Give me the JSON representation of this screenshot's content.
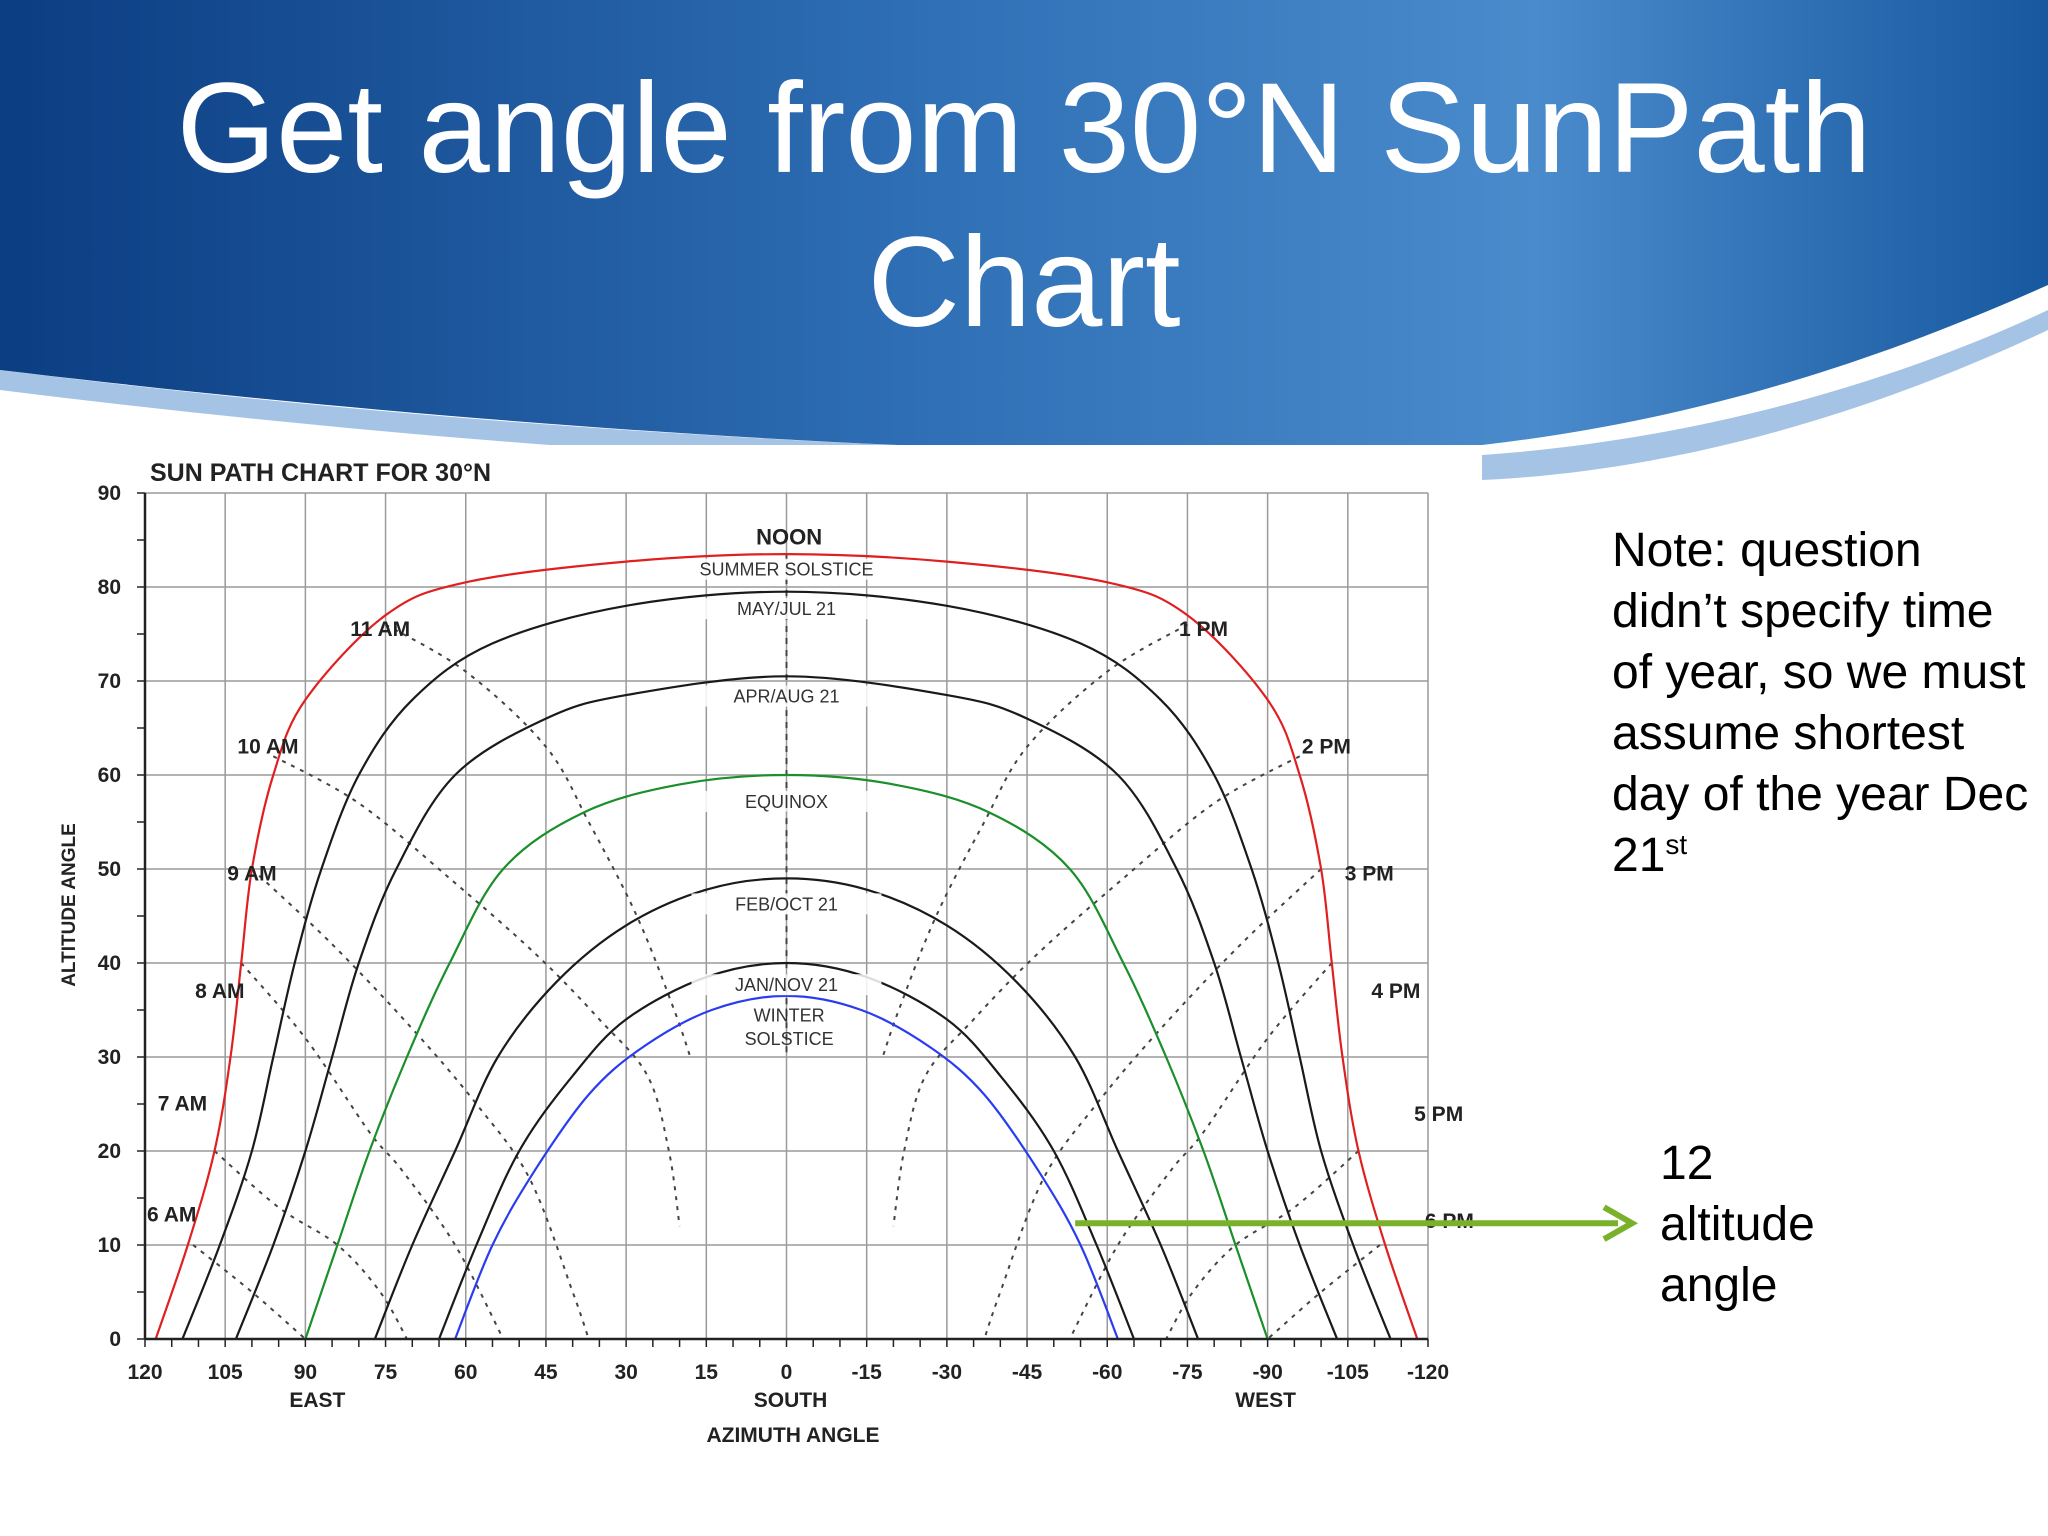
{
  "slide": {
    "title_line1": "Get angle from 30°N SunPath",
    "title_line2": "Chart",
    "colors": {
      "header_dark": "#0b3d82",
      "header_light": "#3f82c6",
      "arrow": "#79b12b"
    }
  },
  "note": {
    "text_main": "Note: question didn’t specify time of year, so we must assume shortest day of the year Dec 21",
    "text_sup": "st"
  },
  "callout": {
    "value": "12",
    "line2": "altitude",
    "line3": "angle"
  },
  "chart_data": {
    "type": "line",
    "title": "SUN PATH CHART FOR 30°N",
    "xlabel": "AZIMUTH ANGLE",
    "ylabel": "ALTITUDE ANGLE",
    "xlim": [
      120,
      -120
    ],
    "ylim": [
      0,
      90
    ],
    "x_ticks": [
      120,
      105,
      90,
      75,
      60,
      45,
      30,
      15,
      0,
      -15,
      -30,
      -45,
      -60,
      -75,
      -90,
      -105,
      -120
    ],
    "y_ticks": [
      0,
      10,
      20,
      30,
      40,
      50,
      60,
      70,
      80,
      90
    ],
    "x_direction_labels": [
      {
        "x": 90,
        "label": "EAST"
      },
      {
        "x": 0,
        "label": "SOUTH"
      },
      {
        "x": -90,
        "label": "WEST"
      }
    ],
    "grid": true,
    "series": [
      {
        "name": "SUMMER SOLSTICE",
        "color": "#e02020",
        "points": [
          [
            118,
            0
          ],
          [
            112,
            10
          ],
          [
            107,
            20
          ],
          [
            104,
            30
          ],
          [
            102,
            40
          ],
          [
            100,
            50
          ],
          [
            96,
            60
          ],
          [
            90,
            68
          ],
          [
            75,
            77
          ],
          [
            60,
            80.5
          ],
          [
            30,
            82.7
          ],
          [
            0,
            83.5
          ],
          [
            -30,
            82.7
          ],
          [
            -60,
            80.5
          ],
          [
            -75,
            77
          ],
          [
            -90,
            68
          ],
          [
            -96,
            60
          ],
          [
            -100,
            50
          ],
          [
            -102,
            40
          ],
          [
            -104,
            30
          ],
          [
            -107,
            20
          ],
          [
            -112,
            10
          ],
          [
            -118,
            0
          ]
        ]
      },
      {
        "name": "MAY/JUL 21",
        "color": "#1a1a1a",
        "points": [
          [
            113,
            0
          ],
          [
            106,
            10
          ],
          [
            100,
            20
          ],
          [
            96,
            30
          ],
          [
            92,
            40
          ],
          [
            87,
            50
          ],
          [
            80,
            60
          ],
          [
            70,
            68
          ],
          [
            55,
            74
          ],
          [
            30,
            78
          ],
          [
            0,
            79.5
          ],
          [
            -30,
            78
          ],
          [
            -55,
            74
          ],
          [
            -70,
            68
          ],
          [
            -80,
            60
          ],
          [
            -87,
            50
          ],
          [
            -92,
            40
          ],
          [
            -96,
            30
          ],
          [
            -100,
            20
          ],
          [
            -106,
            10
          ],
          [
            -113,
            0
          ]
        ]
      },
      {
        "name": "APR/AUG 21",
        "color": "#1a1a1a",
        "points": [
          [
            103,
            0
          ],
          [
            96,
            10
          ],
          [
            90,
            20
          ],
          [
            85,
            30
          ],
          [
            80,
            40
          ],
          [
            73,
            50
          ],
          [
            62,
            60
          ],
          [
            45,
            66
          ],
          [
            30,
            68.5
          ],
          [
            0,
            70.5
          ],
          [
            -30,
            68.5
          ],
          [
            -45,
            66
          ],
          [
            -62,
            60
          ],
          [
            -73,
            50
          ],
          [
            -80,
            40
          ],
          [
            -85,
            30
          ],
          [
            -90,
            20
          ],
          [
            -96,
            10
          ],
          [
            -103,
            0
          ]
        ]
      },
      {
        "name": "EQUINOX",
        "color": "#1a8f2a",
        "points": [
          [
            90,
            0
          ],
          [
            84,
            10
          ],
          [
            78,
            20
          ],
          [
            71,
            30
          ],
          [
            63,
            40
          ],
          [
            53,
            50
          ],
          [
            38,
            56
          ],
          [
            20,
            59
          ],
          [
            0,
            60
          ],
          [
            -20,
            59
          ],
          [
            -38,
            56
          ],
          [
            -53,
            50
          ],
          [
            -63,
            40
          ],
          [
            -71,
            30
          ],
          [
            -78,
            20
          ],
          [
            -84,
            10
          ],
          [
            -90,
            0
          ]
        ]
      },
      {
        "name": "FEB/OCT 21",
        "color": "#1a1a1a",
        "points": [
          [
            77,
            0
          ],
          [
            70,
            10
          ],
          [
            62,
            20
          ],
          [
            54,
            30
          ],
          [
            43,
            38
          ],
          [
            30,
            44
          ],
          [
            15,
            47.8
          ],
          [
            0,
            49
          ],
          [
            -15,
            47.8
          ],
          [
            -30,
            44
          ],
          [
            -43,
            38
          ],
          [
            -54,
            30
          ],
          [
            -62,
            20
          ],
          [
            -70,
            10
          ],
          [
            -77,
            0
          ]
        ]
      },
      {
        "name": "JAN/NOV 21",
        "color": "#1a1a1a",
        "points": [
          [
            65,
            0
          ],
          [
            58,
            10
          ],
          [
            50,
            20
          ],
          [
            40,
            28
          ],
          [
            30,
            34
          ],
          [
            15,
            38.5
          ],
          [
            0,
            40
          ],
          [
            -15,
            38.5
          ],
          [
            -30,
            34
          ],
          [
            -40,
            28
          ],
          [
            -50,
            20
          ],
          [
            -58,
            10
          ],
          [
            -65,
            0
          ]
        ]
      },
      {
        "name": "WINTER SOLSTICE",
        "color": "#2a3cf0",
        "points": [
          [
            62,
            0
          ],
          [
            55,
            10
          ],
          [
            47,
            18
          ],
          [
            37,
            26
          ],
          [
            27,
            31
          ],
          [
            14,
            35
          ],
          [
            0,
            36.5
          ],
          [
            -14,
            35
          ],
          [
            -27,
            31
          ],
          [
            -37,
            26
          ],
          [
            -47,
            18
          ],
          [
            -55,
            10
          ],
          [
            -62,
            0
          ]
        ]
      }
    ],
    "hour_lines": [
      {
        "label": "6 AM",
        "points": [
          [
            111,
            10
          ],
          [
            100,
            5
          ],
          [
            90,
            0
          ]
        ]
      },
      {
        "label": "7 AM",
        "points": [
          [
            107,
            20
          ],
          [
            95,
            14
          ],
          [
            84,
            10
          ],
          [
            76,
            5
          ],
          [
            71,
            0
          ]
        ]
      },
      {
        "label": "8 AM",
        "points": [
          [
            102,
            40
          ],
          [
            90,
            32
          ],
          [
            78,
            22
          ],
          [
            72,
            18
          ],
          [
            62,
            10
          ],
          [
            53,
            0
          ]
        ]
      },
      {
        "label": "9 AM",
        "points": [
          [
            100,
            50
          ],
          [
            85,
            42
          ],
          [
            70,
            33
          ],
          [
            58,
            25
          ],
          [
            48,
            17
          ],
          [
            40,
            5
          ],
          [
            37,
            0
          ]
        ]
      },
      {
        "label": "10 AM",
        "points": [
          [
            96,
            62
          ],
          [
            80,
            57
          ],
          [
            63,
            49
          ],
          [
            47,
            41
          ],
          [
            35,
            34
          ],
          [
            26,
            28
          ],
          [
            22,
            20
          ],
          [
            20,
            12
          ]
        ]
      },
      {
        "label": "11 AM",
        "points": [
          [
            75,
            76
          ],
          [
            60,
            71
          ],
          [
            45,
            63
          ],
          [
            37,
            55
          ],
          [
            28,
            45
          ],
          [
            21,
            35
          ],
          [
            18,
            30
          ]
        ]
      },
      {
        "label": "NOON",
        "points": [
          [
            0,
            83.5
          ],
          [
            0,
            30
          ]
        ]
      },
      {
        "label": "1 PM",
        "points": [
          [
            -75,
            76
          ],
          [
            -60,
            71
          ],
          [
            -45,
            63
          ],
          [
            -37,
            55
          ],
          [
            -28,
            45
          ],
          [
            -21,
            35
          ],
          [
            -18,
            30
          ]
        ]
      },
      {
        "label": "2 PM",
        "points": [
          [
            -96,
            62
          ],
          [
            -80,
            57
          ],
          [
            -63,
            49
          ],
          [
            -47,
            41
          ],
          [
            -35,
            34
          ],
          [
            -26,
            28
          ],
          [
            -22,
            20
          ],
          [
            -20,
            12
          ]
        ]
      },
      {
        "label": "3 PM",
        "points": [
          [
            -100,
            50
          ],
          [
            -85,
            42
          ],
          [
            -70,
            33
          ],
          [
            -58,
            25
          ],
          [
            -48,
            17
          ],
          [
            -40,
            5
          ],
          [
            -37,
            0
          ]
        ]
      },
      {
        "label": "4 PM",
        "points": [
          [
            -102,
            40
          ],
          [
            -90,
            32
          ],
          [
            -78,
            22
          ],
          [
            -72,
            18
          ],
          [
            -62,
            10
          ],
          [
            -53,
            0
          ]
        ]
      },
      {
        "label": "5 PM",
        "points": [
          [
            -107,
            20
          ],
          [
            -95,
            14
          ],
          [
            -84,
            10
          ],
          [
            -76,
            5
          ],
          [
            -71,
            0
          ]
        ]
      },
      {
        "label": "6 PM",
        "points": [
          [
            -111,
            10
          ],
          [
            -100,
            5
          ],
          [
            -90,
            0
          ]
        ]
      }
    ],
    "annotation": {
      "value": 12,
      "x_from": -54,
      "x_to": -120
    }
  }
}
